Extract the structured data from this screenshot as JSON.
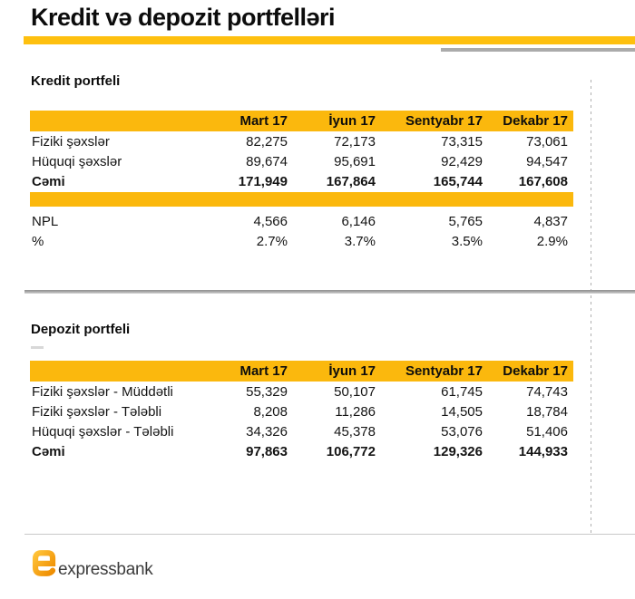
{
  "page": {
    "title": "Kredit və depozit portfelləri"
  },
  "kredit": {
    "heading": "Kredit portfeli",
    "columns": [
      "Mart 17",
      "İyun 17",
      "Sentyabr 17",
      "Dekabr 17"
    ],
    "rows": [
      {
        "label": "Fiziki şəxslər",
        "values": [
          "82,275",
          "72,173",
          "73,315",
          "73,061"
        ],
        "bold": false
      },
      {
        "label": "Hüquqi şəxslər",
        "values": [
          "89,674",
          "95,691",
          "92,429",
          "94,547"
        ],
        "bold": false
      },
      {
        "label": "Cəmi",
        "values": [
          "171,949",
          "167,864",
          "165,744",
          "167,608"
        ],
        "bold": true
      }
    ],
    "npl": {
      "rows": [
        {
          "label": "NPL",
          "values": [
            "4,566",
            "6,146",
            "5,765",
            "4,837"
          ],
          "bold": false
        },
        {
          "label": "%",
          "values": [
            "2.7%",
            "3.7%",
            "3.5%",
            "2.9%"
          ],
          "bold": false
        }
      ]
    }
  },
  "depozit": {
    "heading": "Depozit portfeli",
    "columns": [
      "Mart 17",
      "İyun 17",
      "Sentyabr 17",
      "Dekabr 17"
    ],
    "rows": [
      {
        "label": "Fiziki şəxslər - Müddətli",
        "values": [
          "55,329",
          "50,107",
          "61,745",
          "74,743"
        ],
        "bold": false
      },
      {
        "label": "Fiziki şəxslər - Tələbli",
        "values": [
          "8,208",
          "11,286",
          "14,505",
          "18,784"
        ],
        "bold": false
      },
      {
        "label": "Hüquqi şəxslər - Tələbli",
        "values": [
          "34,326",
          "45,378",
          "53,076",
          "51,406"
        ],
        "bold": false
      },
      {
        "label": "Cəmi",
        "values": [
          "97,863",
          "106,772",
          "129,326",
          "144,933"
        ],
        "bold": true
      }
    ]
  },
  "logo": {
    "text": "expressbank"
  },
  "colors": {
    "accent_yellow": "#FBB80D",
    "title_bar_yellow": "#FEC00F",
    "gray_bar": "#ABABAB",
    "logo_orange_light": "#FFC237",
    "logo_orange_dark": "#EE8C00",
    "text": "#111111"
  }
}
